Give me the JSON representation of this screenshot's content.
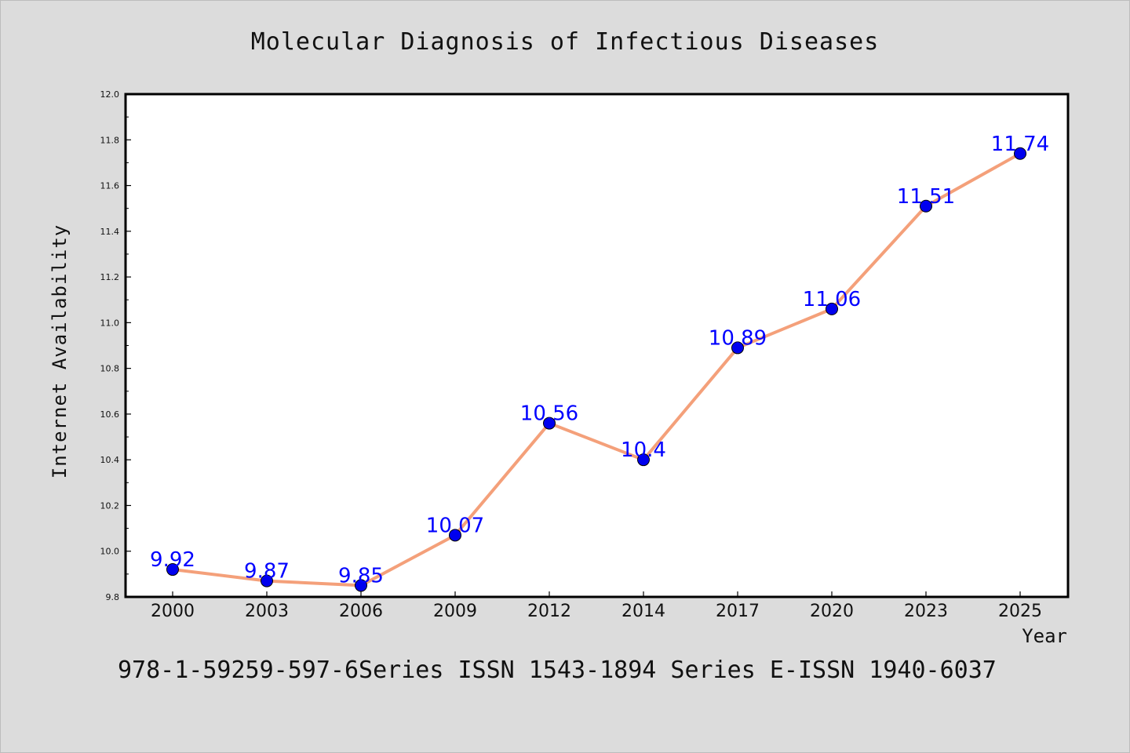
{
  "chart_data": {
    "type": "line",
    "title": "Molecular Diagnosis of Infectious Diseases",
    "xlabel": "Year",
    "ylabel": "Internet Availability",
    "categories": [
      "2000",
      "2003",
      "2006",
      "2009",
      "2012",
      "2014",
      "2017",
      "2020",
      "2023",
      "2025"
    ],
    "values": [
      9.92,
      9.87,
      9.85,
      10.07,
      10.56,
      10.4,
      10.89,
      11.06,
      11.51,
      11.74
    ],
    "data_labels": [
      "9.92",
      "9.87",
      "9.85",
      "10.07",
      "10.56",
      "10.4",
      "10.89",
      "11.06",
      "11.51",
      "11.74"
    ],
    "ylim": [
      9.8,
      12.0
    ],
    "yticks": [
      "9.8",
      "10.0",
      "10.2",
      "10.4",
      "10.6",
      "10.8",
      "11.0",
      "11.2",
      "11.4",
      "11.6",
      "11.8",
      "12.0"
    ],
    "grid": false,
    "line_color": "#f4a07a",
    "marker_color": "#0000ee",
    "label_color": "#0000ff"
  },
  "footer": "978-1-59259-597-6Series ISSN 1543-1894 Series E-ISSN 1940-6037"
}
